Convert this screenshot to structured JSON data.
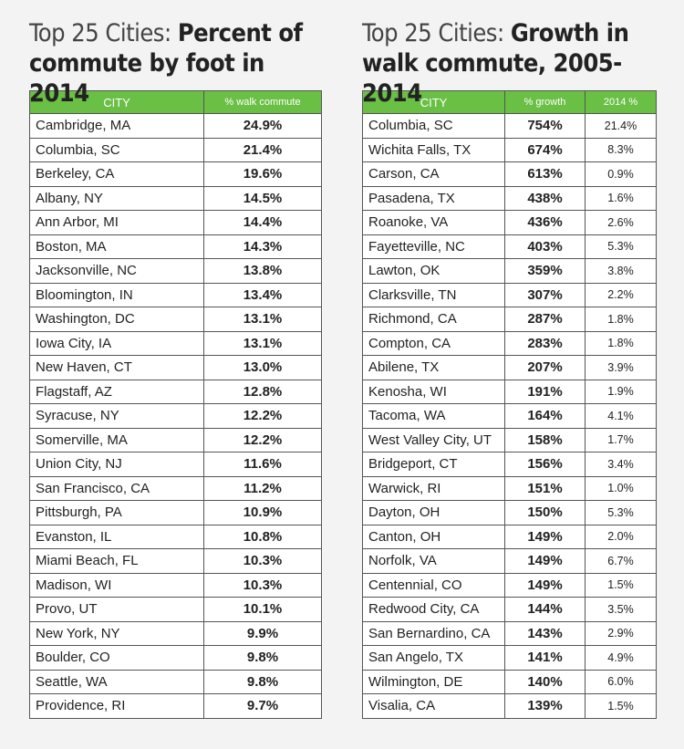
{
  "left": {
    "title_light": "Top 25 Cities: ",
    "title_bold": "Percent of commute by foot in 2014",
    "headers": [
      "CITY",
      "% walk commute"
    ],
    "rows": [
      [
        "Cambridge, MA",
        "24.9%"
      ],
      [
        "Columbia, SC",
        "21.4%"
      ],
      [
        "Berkeley, CA",
        "19.6%"
      ],
      [
        "Albany, NY",
        "14.5%"
      ],
      [
        "Ann Arbor, MI",
        "14.4%"
      ],
      [
        "Boston, MA",
        "14.3%"
      ],
      [
        "Jacksonville, NC",
        "13.8%"
      ],
      [
        "Bloomington, IN",
        "13.4%"
      ],
      [
        "Washington, DC",
        "13.1%"
      ],
      [
        "Iowa City, IA",
        "13.1%"
      ],
      [
        "New Haven, CT",
        "13.0%"
      ],
      [
        "Flagstaff, AZ",
        "12.8%"
      ],
      [
        "Syracuse, NY",
        "12.2%"
      ],
      [
        "Somerville, MA",
        "12.2%"
      ],
      [
        "Union City, NJ",
        "11.6%"
      ],
      [
        "San Francisco, CA",
        "11.2%"
      ],
      [
        "Pittsburgh, PA",
        "10.9%"
      ],
      [
        "Evanston, IL",
        "10.8%"
      ],
      [
        "Miami Beach, FL",
        "10.3%"
      ],
      [
        "Madison, WI",
        "10.3%"
      ],
      [
        "Provo, UT",
        "10.1%"
      ],
      [
        "New York, NY",
        "9.9%"
      ],
      [
        "Boulder, CO",
        "9.8%"
      ],
      [
        "Seattle, WA",
        "9.8%"
      ],
      [
        "Providence, RI",
        "9.7%"
      ]
    ]
  },
  "right": {
    "title_light": "Top 25 Cities: ",
    "title_bold": "Growth in walk commute, 2005-2014",
    "headers": [
      "CITY",
      "% growth",
      "2014 %"
    ],
    "rows": [
      [
        "Columbia, SC",
        "754%",
        "21.4%"
      ],
      [
        "Wichita Falls, TX",
        "674%",
        "8.3%"
      ],
      [
        "Carson, CA",
        "613%",
        "0.9%"
      ],
      [
        "Pasadena, TX",
        "438%",
        "1.6%"
      ],
      [
        "Roanoke, VA",
        "436%",
        "2.6%"
      ],
      [
        "Fayetteville, NC",
        "403%",
        "5.3%"
      ],
      [
        "Lawton, OK",
        "359%",
        "3.8%"
      ],
      [
        "Clarksville, TN",
        "307%",
        "2.2%"
      ],
      [
        "Richmond, CA",
        "287%",
        "1.8%"
      ],
      [
        "Compton, CA",
        "283%",
        "1.8%"
      ],
      [
        "Abilene, TX",
        "207%",
        "3.9%"
      ],
      [
        "Kenosha, WI",
        "191%",
        "1.9%"
      ],
      [
        "Tacoma, WA",
        "164%",
        "4.1%"
      ],
      [
        "West Valley City, UT",
        "158%",
        "1.7%"
      ],
      [
        "Bridgeport, CT",
        "156%",
        "3.4%"
      ],
      [
        "Warwick, RI",
        "151%",
        "1.0%"
      ],
      [
        "Dayton, OH",
        "150%",
        "5.3%"
      ],
      [
        "Canton, OH",
        "149%",
        "2.0%"
      ],
      [
        "Norfolk, VA",
        "149%",
        "6.7%"
      ],
      [
        "Centennial, CO",
        "149%",
        "1.5%"
      ],
      [
        "Redwood City, CA",
        "144%",
        "3.5%"
      ],
      [
        "San Bernardino, CA",
        "143%",
        "2.9%"
      ],
      [
        "San Angelo, TX",
        "141%",
        "4.9%"
      ],
      [
        "Wilmington, DE",
        "140%",
        "6.0%"
      ],
      [
        "Visalia, CA",
        "139%",
        "1.5%"
      ]
    ]
  },
  "chart_data": [
    {
      "type": "table",
      "title": "Top 25 Cities: Percent of commute by foot in 2014",
      "columns": [
        "CITY",
        "% walk commute"
      ],
      "categories": [
        "Cambridge, MA",
        "Columbia, SC",
        "Berkeley, CA",
        "Albany, NY",
        "Ann Arbor, MI",
        "Boston, MA",
        "Jacksonville, NC",
        "Bloomington, IN",
        "Washington, DC",
        "Iowa City, IA",
        "New Haven, CT",
        "Flagstaff, AZ",
        "Syracuse, NY",
        "Somerville, MA",
        "Union City, NJ",
        "San Francisco, CA",
        "Pittsburgh, PA",
        "Evanston, IL",
        "Miami Beach, FL",
        "Madison, WI",
        "Provo, UT",
        "New York, NY",
        "Boulder, CO",
        "Seattle, WA",
        "Providence, RI"
      ],
      "values": [
        24.9,
        21.4,
        19.6,
        14.5,
        14.4,
        14.3,
        13.8,
        13.4,
        13.1,
        13.1,
        13.0,
        12.8,
        12.2,
        12.2,
        11.6,
        11.2,
        10.9,
        10.8,
        10.3,
        10.3,
        10.1,
        9.9,
        9.8,
        9.8,
        9.7
      ]
    },
    {
      "type": "table",
      "title": "Top 25 Cities: Growth in walk commute, 2005-2014",
      "columns": [
        "CITY",
        "% growth",
        "2014 %"
      ],
      "categories": [
        "Columbia, SC",
        "Wichita Falls, TX",
        "Carson, CA",
        "Pasadena, TX",
        "Roanoke, VA",
        "Fayetteville, NC",
        "Lawton, OK",
        "Clarksville, TN",
        "Richmond, CA",
        "Compton, CA",
        "Abilene, TX",
        "Kenosha, WI",
        "Tacoma, WA",
        "West Valley City, UT",
        "Bridgeport, CT",
        "Warwick, RI",
        "Dayton, OH",
        "Canton, OH",
        "Norfolk, VA",
        "Centennial, CO",
        "Redwood City, CA",
        "San Bernardino, CA",
        "San Angelo, TX",
        "Wilmington, DE",
        "Visalia, CA"
      ],
      "series": [
        {
          "name": "% growth",
          "values": [
            754,
            674,
            613,
            438,
            436,
            403,
            359,
            307,
            287,
            283,
            207,
            191,
            164,
            158,
            156,
            151,
            150,
            149,
            149,
            149,
            144,
            143,
            141,
            140,
            139
          ]
        },
        {
          "name": "2014 %",
          "values": [
            21.4,
            8.3,
            0.9,
            1.6,
            2.6,
            5.3,
            3.8,
            2.2,
            1.8,
            1.8,
            3.9,
            1.9,
            4.1,
            1.7,
            3.4,
            1.0,
            5.3,
            2.0,
            6.7,
            1.5,
            3.5,
            2.9,
            4.9,
            6.0,
            1.5
          ]
        }
      ]
    }
  ]
}
